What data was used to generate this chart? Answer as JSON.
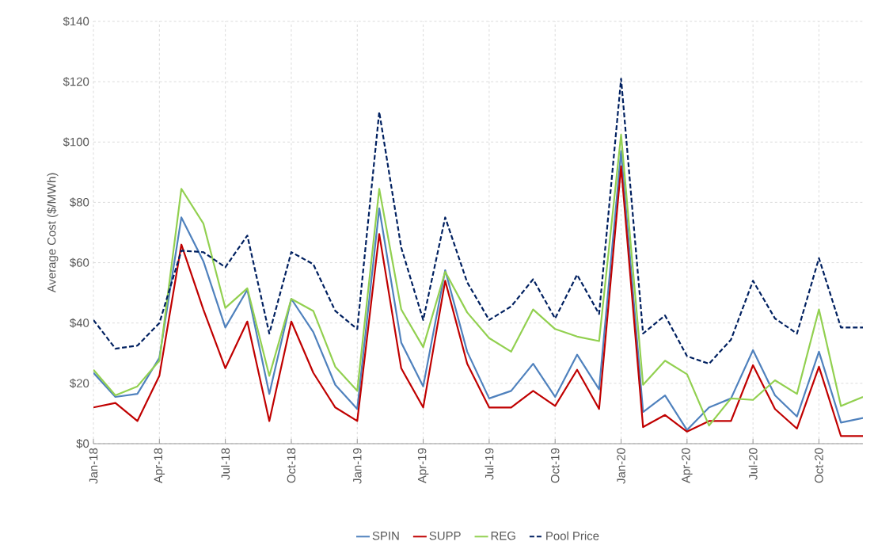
{
  "chart_data": {
    "type": "line",
    "ylabel": "Average Cost ($/MWh)",
    "categories": [
      "Jan-18",
      null,
      null,
      "Apr-18",
      null,
      null,
      "Jul-18",
      null,
      null,
      "Oct-18",
      null,
      null,
      "Jan-19",
      null,
      null,
      "Apr-19",
      null,
      null,
      "Jul-19",
      null,
      null,
      "Oct-19",
      null,
      null,
      "Jan-20",
      null,
      null,
      "Apr-20",
      null,
      null,
      "Jul-20",
      null,
      null,
      "Oct-20",
      null,
      null
    ],
    "series": [
      {
        "name": "SPIN",
        "color": "#4f81bd",
        "line_style": "solid",
        "values": [
          23.5,
          15.5,
          16.5,
          28.5,
          75,
          60.5,
          38.5,
          51,
          16.5,
          48,
          37,
          19.5,
          11.5,
          78,
          33.5,
          19,
          57.5,
          30.5,
          15,
          17.5,
          26.5,
          15.5,
          29.5,
          18,
          97,
          10.5,
          16,
          4.5,
          12,
          15,
          31,
          16,
          9,
          30.5,
          7,
          8.5
        ]
      },
      {
        "name": "SUPP",
        "color": "#c00000",
        "line_style": "solid",
        "values": [
          12,
          13.5,
          7.5,
          22.5,
          66,
          44.5,
          25,
          40.5,
          7.5,
          40.5,
          23.5,
          12,
          7.5,
          69.5,
          25,
          12,
          54,
          26.5,
          12,
          12,
          17.5,
          12.5,
          24.5,
          11.5,
          92,
          5.5,
          9.5,
          4,
          7.5,
          7.5,
          26,
          11.5,
          5,
          25.5,
          2.5,
          2.5
        ]
      },
      {
        "name": "REG",
        "color": "#92d050",
        "line_style": "solid",
        "values": [
          24.5,
          16,
          19,
          27.5,
          84.5,
          73,
          45,
          51.5,
          22.5,
          48,
          44,
          25.5,
          17.5,
          84.5,
          44.5,
          32,
          57,
          43.5,
          35,
          30.5,
          44.5,
          38,
          35.5,
          34,
          102.5,
          19.5,
          27.5,
          23,
          6,
          15,
          14.5,
          21,
          16.5,
          44.5,
          12.5,
          15.5
        ]
      },
      {
        "name": "Pool Price",
        "color": "#002060",
        "line_style": "dashed",
        "values": [
          41,
          31.5,
          32.5,
          40,
          64,
          63.5,
          58.5,
          69,
          36.5,
          63.5,
          59.5,
          44,
          38,
          110,
          65,
          41,
          75,
          53.5,
          41,
          45.5,
          54.5,
          41.5,
          56,
          43,
          121,
          36.5,
          42.5,
          29,
          26.5,
          34.5,
          54,
          41.5,
          36.5,
          61.5,
          38.5,
          38.5
        ]
      }
    ],
    "ylim": [
      0,
      140
    ],
    "yticks": [
      {
        "value": 0,
        "label": "$0"
      },
      {
        "value": 20,
        "label": "$20"
      },
      {
        "value": 40,
        "label": "$40"
      },
      {
        "value": 60,
        "label": "$60"
      },
      {
        "value": 80,
        "label": "$80"
      },
      {
        "value": 100,
        "label": "$100"
      },
      {
        "value": 120,
        "label": "$120"
      },
      {
        "value": 140,
        "label": "$140"
      }
    ],
    "grid": true,
    "legend": "bottom",
    "marker": "none"
  }
}
